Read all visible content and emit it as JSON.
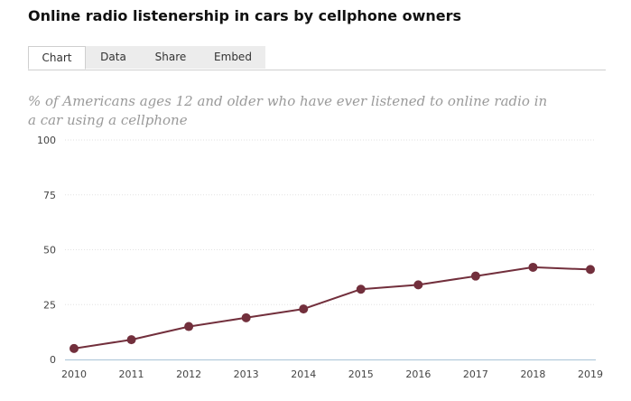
{
  "page": {
    "title": "Online radio listenership in cars by cellphone owners"
  },
  "tabs": [
    {
      "label": "Chart",
      "active": true
    },
    {
      "label": "Data",
      "active": false
    },
    {
      "label": "Share",
      "active": false
    },
    {
      "label": "Embed",
      "active": false
    }
  ],
  "chart_data": {
    "type": "line",
    "subtitle": "% of Americans ages 12 and older who have ever listened to online radio in a car using a cellphone",
    "x": [
      "2010",
      "2011",
      "2012",
      "2013",
      "2014",
      "2015",
      "2016",
      "2017",
      "2018",
      "2019"
    ],
    "series": [
      {
        "values": [
          5,
          9,
          15,
          19,
          23,
          32,
          34,
          38,
          42,
          41
        ]
      }
    ],
    "ylim": [
      0,
      100
    ],
    "yticks": [
      0,
      25,
      50,
      75,
      100
    ],
    "grid": true,
    "line_color": "#722f3c",
    "gridline_color": "#e2e2e2",
    "axis_color": "#a9c4d6"
  }
}
